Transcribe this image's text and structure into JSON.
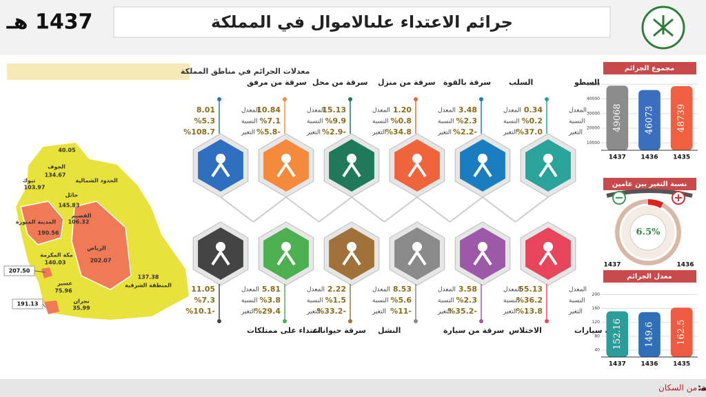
{
  "header": {
    "title": "جرائم الاعتداء علىالاموال  في المملكة",
    "year": "1437 هـ"
  },
  "map": {
    "title": "معدلات الجرائم في مناطق المملكة",
    "regions": [
      {
        "name": "الحدود الشمالية",
        "value": "40.05"
      },
      {
        "name": "الجوف",
        "value": "134.67"
      },
      {
        "name": "تبوك",
        "value": "103.97"
      },
      {
        "name": "حائل",
        "value": "145.83"
      },
      {
        "name": "القصيم",
        "value": "106.32"
      },
      {
        "name": "المدينة المنورة",
        "value": "190.56"
      },
      {
        "name": "الرياض",
        "value": "202.07"
      },
      {
        "name": "مكة المكرمة",
        "value": "140.03"
      },
      {
        "name": "عسير",
        "value": "75.96"
      },
      {
        "name": "نجران",
        "value": "35.99"
      },
      {
        "name": "المنطقة الشرقية",
        "value": "137.38"
      }
    ],
    "callouts": [
      "207.50",
      "191.13"
    ]
  },
  "stat_labels": [
    "المعدل",
    "النسبة",
    "التغير"
  ],
  "crimes_top": [
    {
      "name": "السطو",
      "rate": "0.34",
      "share": "%0.2",
      "change": "%37.0"
    },
    {
      "name": "السلب",
      "rate": "3.48",
      "share": "%2.3",
      "change": "%2.2-"
    },
    {
      "name": "سرقة بالقوة",
      "rate": "1.20",
      "share": "%0.8",
      "change": "%34.8"
    },
    {
      "name": "سرقة من منزل",
      "rate": "15.13",
      "share": "%9.9",
      "change": "%2.9-"
    },
    {
      "name": "سرقة من محل",
      "rate": "10.84",
      "share": "%7.1",
      "change": "%5.8-"
    },
    {
      "name": "سرقة من مرفق",
      "rate": "8.01",
      "share": "%5.3",
      "change": "%108.7"
    }
  ],
  "crimes_bottom": [
    {
      "name": "سرقة سيارات",
      "rate": "55.13",
      "share": "%36.2",
      "change": "%13.8"
    },
    {
      "name": "الاختلاس",
      "rate": "3.58",
      "share": "%2.3",
      "change": "%35.2-"
    },
    {
      "name": "سرقة من سيارة",
      "rate": "8.53",
      "share": "%5.6",
      "change": "%11-"
    },
    {
      "name": "النشل",
      "rate": "2.22",
      "share": "%1.5",
      "change": "%33.2-"
    },
    {
      "name": "سرقة حيوانات",
      "rate": "5.81",
      "share": "%3.8",
      "change": "%29.4"
    },
    {
      "name": "اعتداء على ممتلكات",
      "rate": "11.05",
      "share": "%7.3",
      "change": "%10.1-"
    }
  ],
  "total_chart": {
    "type": "bar",
    "title": "مجموع الجرائم",
    "categories": [
      "1437",
      "1436",
      "1435"
    ],
    "values": [
      49068,
      46073,
      48739
    ],
    "colors": [
      "#8c8c8c",
      "#3a6fc0",
      "#f06040"
    ],
    "ylim": [
      5000,
      52000
    ],
    "yticks": [
      10000,
      20000,
      30000,
      40000,
      50000
    ]
  },
  "change_gauge": {
    "title": "نسبة التغير بين عامين",
    "value": "6.5%",
    "left_year": "1437",
    "right_year": "1436"
  },
  "rate_chart": {
    "type": "bar",
    "title": "معدل الجرائم",
    "categories": [
      "1437",
      "1436",
      "1435"
    ],
    "values": [
      152.16,
      149.6,
      162.5
    ],
    "colors": [
      "#2a9d9a",
      "#2f6fb8",
      "#f05a40"
    ],
    "ylim": [
      20,
      215
    ],
    "yticks": [
      40,
      80,
      120,
      160,
      200
    ]
  },
  "footer": {
    "label": "ملاحظة:",
    "text": "معدل الجرائم - عدد الجرائم لكل مائة الف من السكان"
  }
}
